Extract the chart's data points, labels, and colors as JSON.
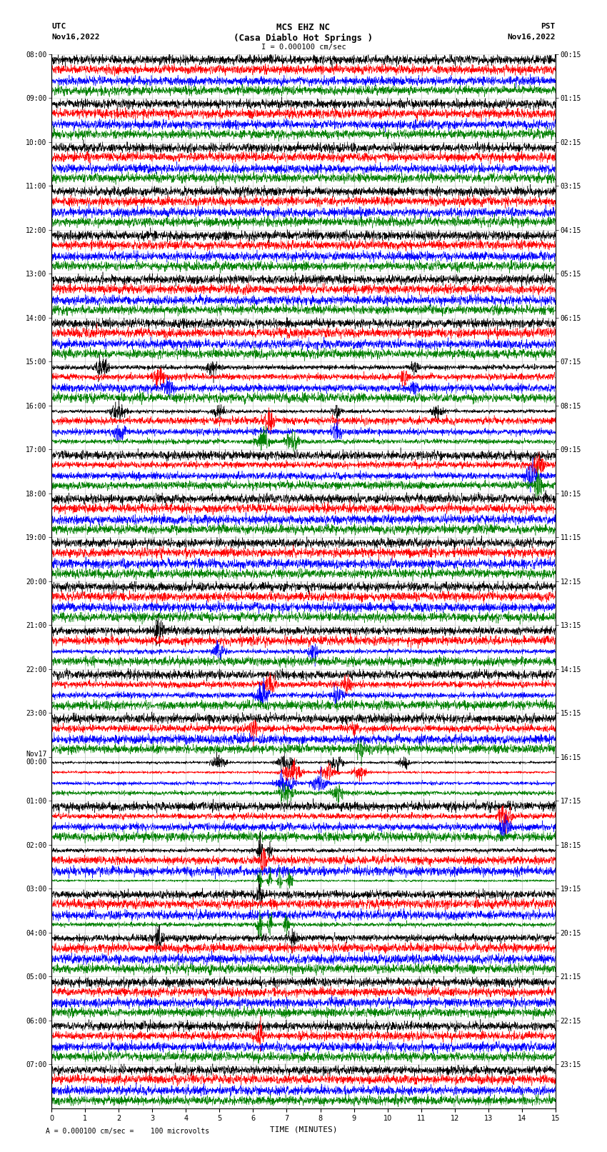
{
  "title_line1": "MCS EHZ NC",
  "title_line2": "(Casa Diablo Hot Springs )",
  "title_line3": "I = 0.000100 cm/sec",
  "left_label_top": "UTC",
  "left_label_bot": "Nov16,2022",
  "right_label_top": "PST",
  "right_label_bot": "Nov16,2022",
  "bottom_label": "TIME (MINUTES)",
  "scale_label": "= 0.000100 cm/sec =    100 microvolts",
  "scale_char": "A",
  "utc_times": [
    "08:00",
    "09:00",
    "10:00",
    "11:00",
    "12:00",
    "13:00",
    "14:00",
    "15:00",
    "16:00",
    "17:00",
    "18:00",
    "19:00",
    "20:00",
    "21:00",
    "22:00",
    "23:00",
    "Nov17\n00:00",
    "01:00",
    "02:00",
    "03:00",
    "04:00",
    "05:00",
    "06:00",
    "07:00"
  ],
  "pst_times": [
    "00:15",
    "01:15",
    "02:15",
    "03:15",
    "04:15",
    "05:15",
    "06:15",
    "07:15",
    "08:15",
    "09:15",
    "10:15",
    "11:15",
    "12:15",
    "13:15",
    "14:15",
    "15:15",
    "16:15",
    "17:15",
    "18:15",
    "19:15",
    "20:15",
    "21:15",
    "22:15",
    "23:15"
  ],
  "n_rows": 24,
  "n_traces_per_row": 4,
  "trace_colors": [
    "black",
    "red",
    "blue",
    "green"
  ],
  "x_min": 0,
  "x_max": 15,
  "x_ticks": [
    0,
    1,
    2,
    3,
    4,
    5,
    6,
    7,
    8,
    9,
    10,
    11,
    12,
    13,
    14,
    15
  ],
  "fig_width": 8.5,
  "fig_height": 16.13,
  "dpi": 100,
  "bg_color": "white",
  "grid_color": "#aaaaaa"
}
